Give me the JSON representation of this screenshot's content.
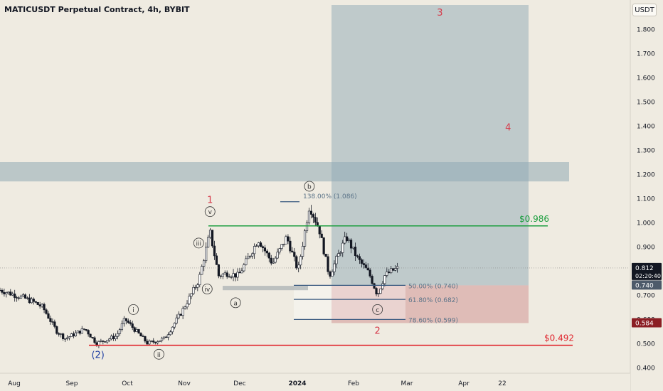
{
  "header": {
    "title": "MATICUSDT Perpetual Contract, 4h, BYBIT",
    "currency": "USDT"
  },
  "colors": {
    "background": "#efebe1",
    "candle": "#131722",
    "target_green": "#1b9e3e",
    "stop_red": "#e0242c",
    "wave_red": "#d63a4a",
    "wave_blue": "#1f3fa3",
    "fib_blue": "#3a5a80",
    "zone_blue": "#8fa9b5",
    "zone_red": "#d8a8a5"
  },
  "chart_data": {
    "type": "candlestick",
    "symbol": "MATICUSDT",
    "timeframe": "4h",
    "ylim": [
      0.4,
      1.9
    ],
    "y_ticks": [
      "1.800",
      "1.700",
      "1.600",
      "1.500",
      "1.400",
      "1.300",
      "1.200",
      "1.100",
      "1.000",
      "0.900",
      "0.800",
      "0.700",
      "0.600",
      "0.500",
      "0.400"
    ],
    "x_ticks": [
      "Aug",
      "Sep",
      "Oct",
      "Nov",
      "Dec",
      "2024",
      "Feb",
      "Mar",
      "Apr",
      "22"
    ],
    "price_anchors": [
      {
        "t": 0.0,
        "p": 0.72
      },
      {
        "t": 0.8,
        "p": 0.69
      },
      {
        "t": 1.2,
        "p": 0.67
      },
      {
        "t": 1.5,
        "p": 0.65
      },
      {
        "t": 2.0,
        "p": 0.55
      },
      {
        "t": 2.3,
        "p": 0.52
      },
      {
        "t": 3.0,
        "p": 0.56
      },
      {
        "t": 3.4,
        "p": 0.5
      },
      {
        "t": 4.1,
        "p": 0.53
      },
      {
        "t": 4.4,
        "p": 0.6
      },
      {
        "t": 5.2,
        "p": 0.5
      },
      {
        "t": 5.8,
        "p": 0.52
      },
      {
        "t": 6.4,
        "p": 0.63
      },
      {
        "t": 7.0,
        "p": 0.76
      },
      {
        "t": 7.4,
        "p": 0.96
      },
      {
        "t": 7.7,
        "p": 0.78
      },
      {
        "t": 8.0,
        "p": 0.79
      },
      {
        "t": 8.4,
        "p": 0.78
      },
      {
        "t": 9.1,
        "p": 0.93
      },
      {
        "t": 9.6,
        "p": 0.83
      },
      {
        "t": 10.1,
        "p": 0.94
      },
      {
        "t": 10.5,
        "p": 0.8
      },
      {
        "t": 10.9,
        "p": 1.07
      },
      {
        "t": 11.25,
        "p": 0.97
      },
      {
        "t": 11.6,
        "p": 0.78
      },
      {
        "t": 12.2,
        "p": 0.94
      },
      {
        "t": 12.6,
        "p": 0.85
      },
      {
        "t": 13.0,
        "p": 0.79
      },
      {
        "t": 13.3,
        "p": 0.7
      },
      {
        "t": 13.55,
        "p": 0.78
      },
      {
        "t": 13.8,
        "p": 0.8
      },
      {
        "t": 14.0,
        "p": 0.81
      }
    ],
    "x_months_visible": 20.0,
    "horizontal_levels": [
      {
        "label": "$0.986",
        "value": 0.986,
        "color": "green"
      },
      {
        "label": "$0.492",
        "value": 0.492,
        "color": "red"
      }
    ],
    "fib_levels": [
      {
        "label": "138.00% (1.086)",
        "value": 1.086
      },
      {
        "label": "50.00% (0.740)",
        "value": 0.74
      },
      {
        "label": "61.80% (0.682)",
        "value": 0.682
      },
      {
        "label": "78.60% (0.599)",
        "value": 0.599
      }
    ],
    "resistance_zone": [
      1.17,
      1.25
    ],
    "position": {
      "entry": 0.74,
      "target": 1.9,
      "stop": 0.584
    },
    "price_labels": [
      {
        "text": "0.812",
        "sub": "02:20:40",
        "value": 0.812,
        "bg": "#131722"
      },
      {
        "text": "0.740",
        "value": 0.74,
        "bg": "#4d5a6a"
      },
      {
        "text": "0.584",
        "value": 0.584,
        "bg": "#8b1e24"
      }
    ],
    "wave_labels": [
      {
        "text": "1",
        "t": 7.4,
        "p": 1.095,
        "style": "red"
      },
      {
        "text": "2",
        "t": 13.3,
        "p": 0.555,
        "style": "red"
      },
      {
        "text": "3",
        "t": 15.5,
        "p": 1.87,
        "style": "red"
      },
      {
        "text": "4",
        "t": 17.9,
        "p": 1.395,
        "style": "red"
      },
      {
        "text": "(2)",
        "t": 3.45,
        "p": 0.455,
        "style": "blue"
      },
      {
        "text": "v",
        "t": 7.4,
        "p": 1.045,
        "style": "circle"
      },
      {
        "text": "iii",
        "t": 7.0,
        "p": 0.915,
        "style": "circle"
      },
      {
        "text": "iv",
        "t": 7.3,
        "p": 0.725,
        "style": "circle"
      },
      {
        "text": "i",
        "t": 4.7,
        "p": 0.64,
        "style": "circle"
      },
      {
        "text": "ii",
        "t": 5.6,
        "p": 0.455,
        "style": "circle"
      },
      {
        "text": "a",
        "t": 8.3,
        "p": 0.668,
        "style": "circle"
      },
      {
        "text": "b",
        "t": 10.9,
        "p": 1.15,
        "style": "circle"
      },
      {
        "text": "c",
        "t": 13.3,
        "p": 0.64,
        "style": "circle"
      }
    ]
  }
}
